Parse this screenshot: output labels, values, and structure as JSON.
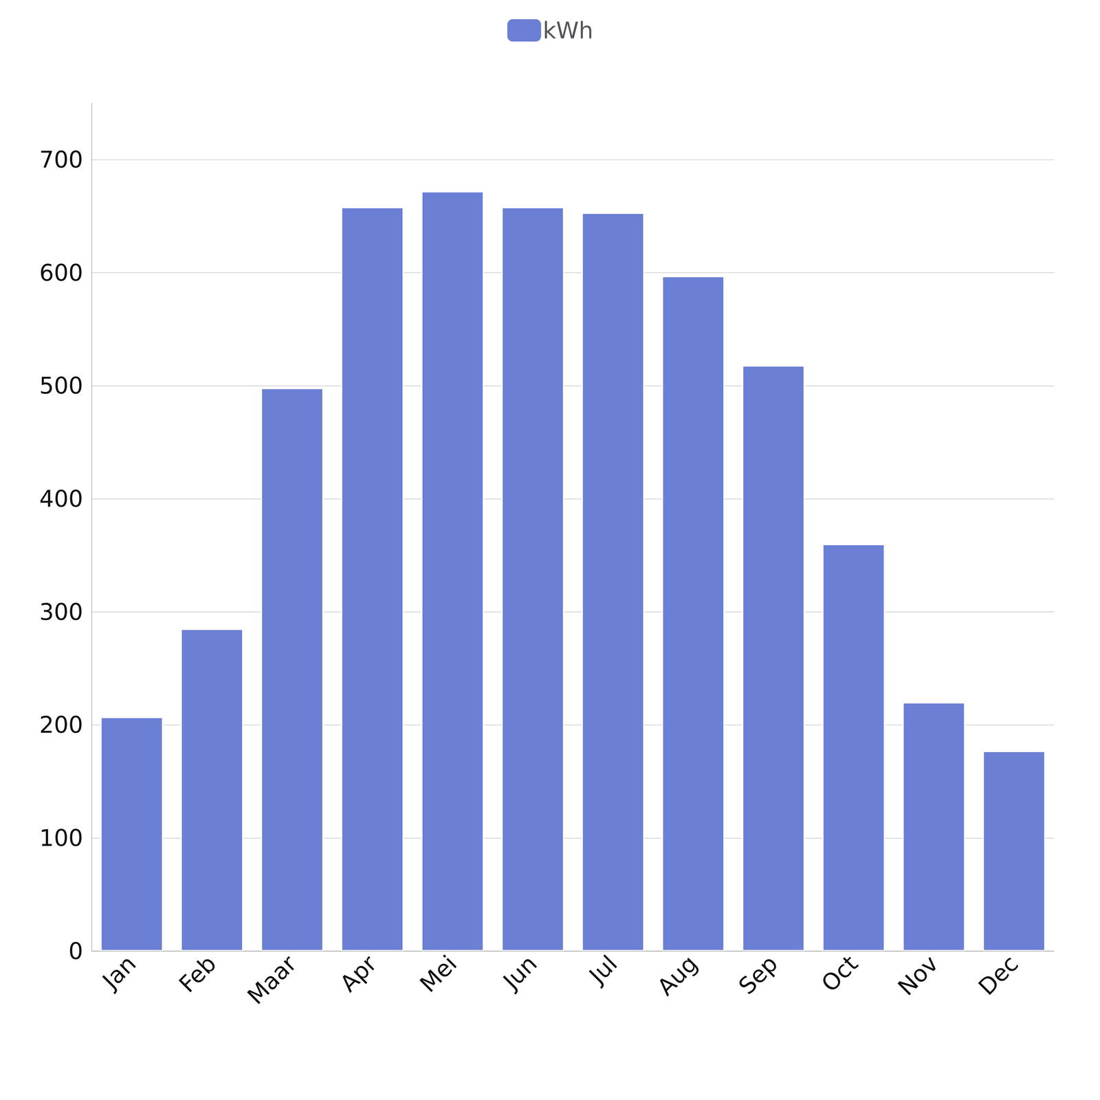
{
  "chart_data": {
    "type": "bar",
    "categories": [
      "Jan",
      "Feb",
      "Maar",
      "Apr",
      "Mei",
      "Jun",
      "Jul",
      "Aug",
      "Sep",
      "Oct",
      "Nov",
      "Dec"
    ],
    "series": [
      {
        "name": "kWh",
        "color": "#6B7FD4",
        "values": [
          207,
          285,
          498,
          658,
          672,
          658,
          653,
          597,
          518,
          360,
          220,
          177
        ]
      }
    ],
    "ylim": [
      0,
      750
    ],
    "yticks": [
      0,
      100,
      200,
      300,
      400,
      500,
      600,
      700
    ],
    "grid": true,
    "legend": "top"
  }
}
